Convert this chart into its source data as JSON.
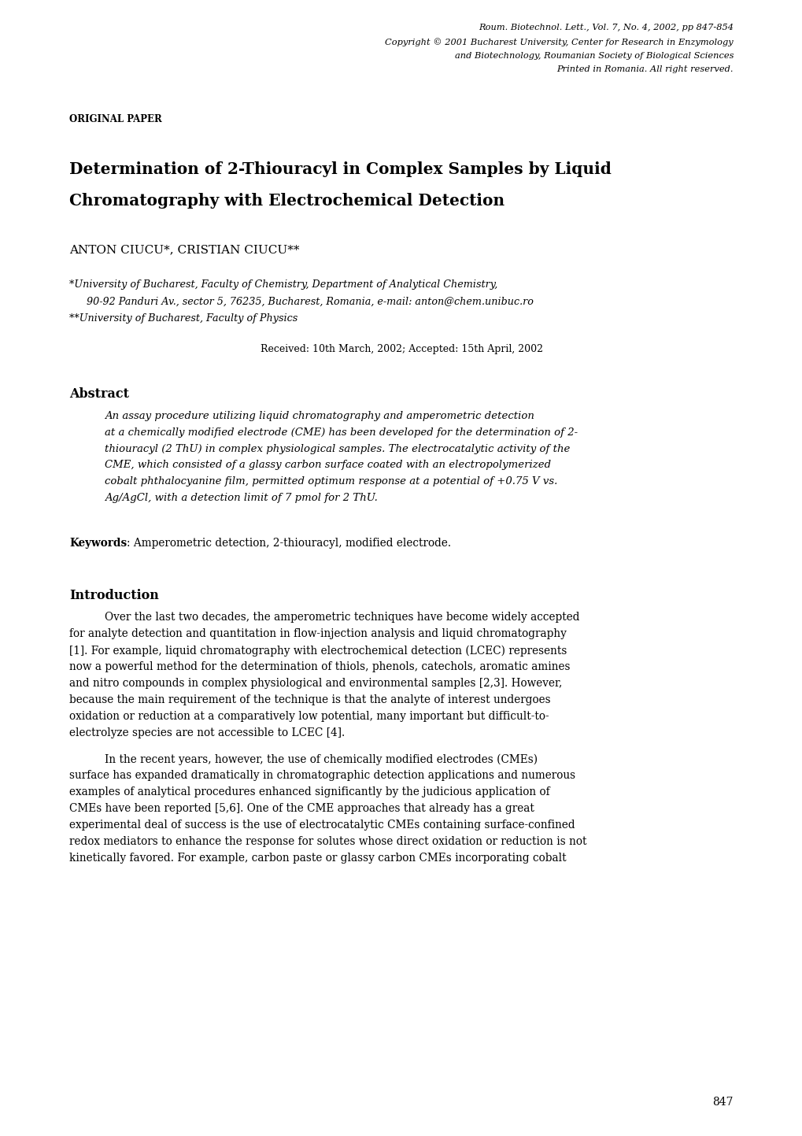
{
  "bg_color": "#ffffff",
  "text_color": "#000000",
  "page_width": 10.2,
  "page_height": 14.43,
  "header_right": [
    "Roum. Biotechnol. Lett., Vol. 7, No. 4, 2002, pp 847-854",
    "Copyright © 2001 Bucharest University, Center for Research in Enzymology",
    "and Biotechnology, Roumanian Society of Biological Sciences",
    "Printed in Romania. All right reserved."
  ],
  "original_paper": "ORIGINAL PAPER",
  "title_line1": "Determination of 2-Thiouracyl in Complex Samples by Liquid",
  "title_line2": "Chromatography with Electrochemical Detection",
  "authors": "ANTON CIUCU*, CRISTIAN CIUCU**",
  "affil1": "*University of Bucharest, Faculty of Chemistry, Department of Analytical Chemistry,",
  "affil2": "   90-92 Panduri Av., sector 5, 76235, Bucharest, Romania, e-mail: anton@chem.unibuc.ro",
  "affil3": "**University of Bucharest, Faculty of Physics",
  "received": "Received: 10th March, 2002; Accepted: 15th April, 2002",
  "received_super1": "th",
  "abstract_title": "Abstract",
  "abstract_lines": [
    "An assay procedure utilizing liquid chromatography and amperometric detection",
    "at a chemically modified electrode (CME) has been developed for the determination of 2-",
    "thiouracyl (2 ThU) in complex physiological samples. The electrocatalytic activity of the",
    "CME, which consisted of a glassy carbon surface coated with an electropolymerized",
    "cobalt phthalocyanine film, permitted optimum response at a potential of +0.75 V vs.",
    "Ag/AgCl, with a detection limit of 7 pmol for 2 ThU."
  ],
  "keywords_bold": "Keywords",
  "keywords_text": ": Amperometric detection, 2-thiouracyl, modified electrode.",
  "intro_title": "Introduction",
  "intro_p1_lines": [
    "Over the last two decades, the amperometric techniques have become widely accepted",
    "for analyte detection and quantitation in flow-injection analysis and liquid chromatography",
    "[1]. For example, liquid chromatography with electrochemical detection (LCEC) represents",
    "now a powerful method for the determination of thiols, phenols, catechols, aromatic amines",
    "and nitro compounds in complex physiological and environmental samples [2,3]. However,",
    "because the main requirement of the technique is that the analyte of interest undergoes",
    "oxidation or reduction at a comparatively low potential, many important but difficult-to-",
    "electrolyze species are not accessible to LCEC [4]."
  ],
  "intro_p2_lines": [
    "In the recent years, however, the use of chemically modified electrodes (CMEs)",
    "surface has expanded dramatically in chromatographic detection applications and numerous",
    "examples of analytical procedures enhanced significantly by the judicious application of",
    "CMEs have been reported [5,6]. One of the CME approaches that already has a great",
    "experimental deal of success is the use of electrocatalytic CMEs containing surface-confined",
    "redox mediators to enhance the response for solutes whose direct oxidation or reduction is not",
    "kinetically favored. For example, carbon paste or glassy carbon CMEs incorporating cobalt"
  ],
  "page_number": "847",
  "lm": 0.88,
  "rm": 9.32,
  "header_fontsize": 8.2,
  "orig_fontsize": 8.5,
  "title_fontsize": 14.5,
  "authors_fontsize": 11.0,
  "affil_fontsize": 9.2,
  "received_fontsize": 9.0,
  "abstract_title_fontsize": 11.5,
  "abstract_fontsize": 9.5,
  "keywords_fontsize": 9.8,
  "intro_title_fontsize": 11.5,
  "intro_fontsize": 9.8,
  "page_num_fontsize": 10.0
}
